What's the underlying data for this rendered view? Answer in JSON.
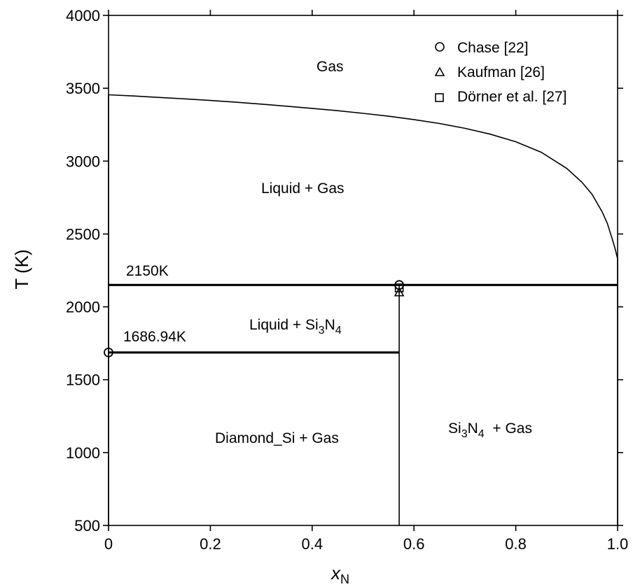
{
  "chart_data": {
    "type": "line",
    "title": "",
    "xlabel": "x",
    "xlabel_subscript": "N",
    "ylabel": "T (K)",
    "xlim": [
      0,
      1
    ],
    "ylim": [
      500,
      4000
    ],
    "x_ticks": [
      "0",
      "0.2",
      "0.4",
      "0.6",
      "0.8",
      "1.0"
    ],
    "y_ticks": [
      "500",
      "1000",
      "1500",
      "2000",
      "2500",
      "3000",
      "3500",
      "4000"
    ],
    "grid": false,
    "legend_position": "top-right",
    "series": [
      {
        "type": "curve",
        "x": [
          0,
          0.05,
          0.1,
          0.15,
          0.2,
          0.25,
          0.3,
          0.35,
          0.4,
          0.45,
          0.5,
          0.55,
          0.6,
          0.65,
          0.7,
          0.75,
          0.8,
          0.85,
          0.9,
          0.93,
          0.95,
          0.97,
          0.98,
          0.99,
          0.995,
          1.0
        ],
        "y": [
          3455,
          3447,
          3437,
          3427,
          3416,
          3404,
          3391,
          3377,
          3362,
          3346,
          3328,
          3308,
          3285,
          3258,
          3225,
          3185,
          3133,
          3061,
          2950,
          2855,
          2772,
          2650,
          2570,
          2460,
          2400,
          2330
        ]
      },
      {
        "type": "isotherm",
        "label": "2150K",
        "x": [
          0,
          1.0
        ],
        "y": [
          2150,
          2150
        ]
      },
      {
        "type": "isotherm",
        "label": "1686.94K",
        "x": [
          0,
          0.571
        ],
        "y": [
          1686.94,
          1686.94
        ]
      },
      {
        "type": "vertical",
        "x": [
          0.571,
          0.571
        ],
        "y": [
          500,
          2150
        ]
      },
      {
        "type": "vertical",
        "x": [
          0,
          0
        ],
        "y": [
          500,
          3455
        ]
      },
      {
        "type": "vertical",
        "x": [
          1.0,
          1.0
        ],
        "y": [
          500,
          2330
        ]
      }
    ],
    "experimental_points": [
      {
        "source": "Chase [22]",
        "marker": "circle",
        "points": [
          [
            0,
            1687
          ],
          [
            0.571,
            2150
          ]
        ]
      },
      {
        "source": "Kaufman [26]",
        "marker": "triangle",
        "points": [
          [
            0.571,
            2100
          ]
        ]
      },
      {
        "source": "Dörner et al. [27]",
        "marker": "square",
        "points": [
          [
            0.571,
            2130
          ]
        ]
      }
    ],
    "region_labels": {
      "gas": "Gas",
      "liquid_gas": "Liquid + Gas",
      "liquid_si3n4_pre": "Liquid + Si",
      "diamond_gas": "Diamond_Si + Gas",
      "si3n4_gas_post": "  + Gas",
      "sub3": "3",
      "sub4": "4",
      "n": "N"
    },
    "legend": [
      {
        "label": "Chase [22]",
        "marker": "circle"
      },
      {
        "label": "Kaufman [26]",
        "marker": "triangle"
      },
      {
        "label": "Dörner et al. [27]",
        "marker": "square"
      }
    ]
  }
}
